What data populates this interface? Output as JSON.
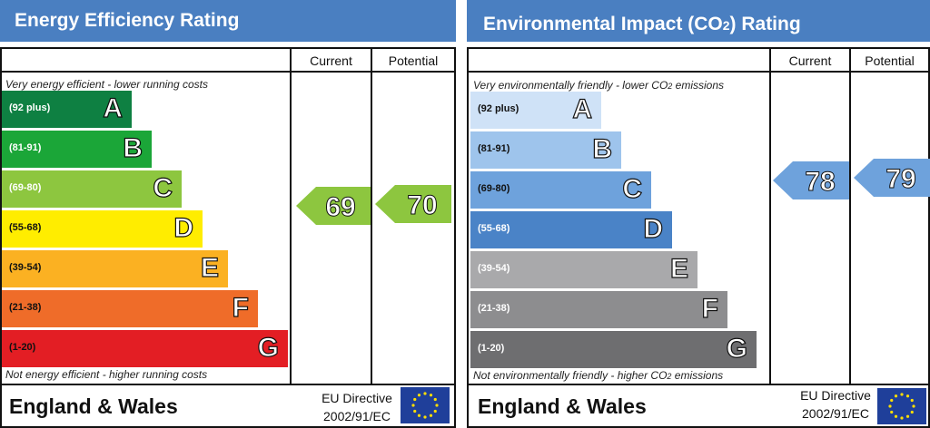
{
  "chart_data": [
    {
      "type": "table",
      "title": "Energy Efficiency Rating",
      "columns": [
        "Current",
        "Potential"
      ],
      "top_note": "Very energy efficient - lower running costs",
      "bottom_note": "Not energy efficient - higher running costs",
      "bands": [
        {
          "letter": "A",
          "range": "(92 plus)",
          "color": "#0e8042"
        },
        {
          "letter": "B",
          "range": "(81-91)",
          "color": "#1ba638"
        },
        {
          "letter": "C",
          "range": "(69-80)",
          "color": "#8dc63f"
        },
        {
          "letter": "D",
          "range": "(55-68)",
          "color": "#ffed00"
        },
        {
          "letter": "E",
          "range": "(39-54)",
          "color": "#fbb122"
        },
        {
          "letter": "F",
          "range": "(21-38)",
          "color": "#ef6c29"
        },
        {
          "letter": "G",
          "range": "(1-20)",
          "color": "#e31e24"
        }
      ],
      "current": 69,
      "potential": 70,
      "arrow_color": "#8dc63f",
      "footer": "England & Wales",
      "directive_line1": "EU Directive",
      "directive_line2": "2002/91/EC"
    },
    {
      "type": "table",
      "title": "Environmental Impact (CO2) Rating",
      "columns": [
        "Current",
        "Potential"
      ],
      "top_note": "Very environmentally friendly - lower CO2 emissions",
      "bottom_note": "Not environmentally friendly - higher CO2 emissions",
      "bands": [
        {
          "letter": "A",
          "range": "(92 plus)",
          "color": "#cfe2f7"
        },
        {
          "letter": "B",
          "range": "(81-91)",
          "color": "#9ec4ec"
        },
        {
          "letter": "C",
          "range": "(69-80)",
          "color": "#6ea2dc"
        },
        {
          "letter": "D",
          "range": "(55-68)",
          "color": "#4a83c7"
        },
        {
          "letter": "E",
          "range": "(39-54)",
          "color": "#a9a9ab"
        },
        {
          "letter": "F",
          "range": "(21-38)",
          "color": "#8d8d8f"
        },
        {
          "letter": "G",
          "range": "(1-20)",
          "color": "#6e6e70"
        }
      ],
      "current": 78,
      "potential": 79,
      "arrow_color": "#6ea2dc",
      "footer": "England & Wales",
      "directive_line1": "EU Directive",
      "directive_line2": "2002/91/EC"
    }
  ]
}
